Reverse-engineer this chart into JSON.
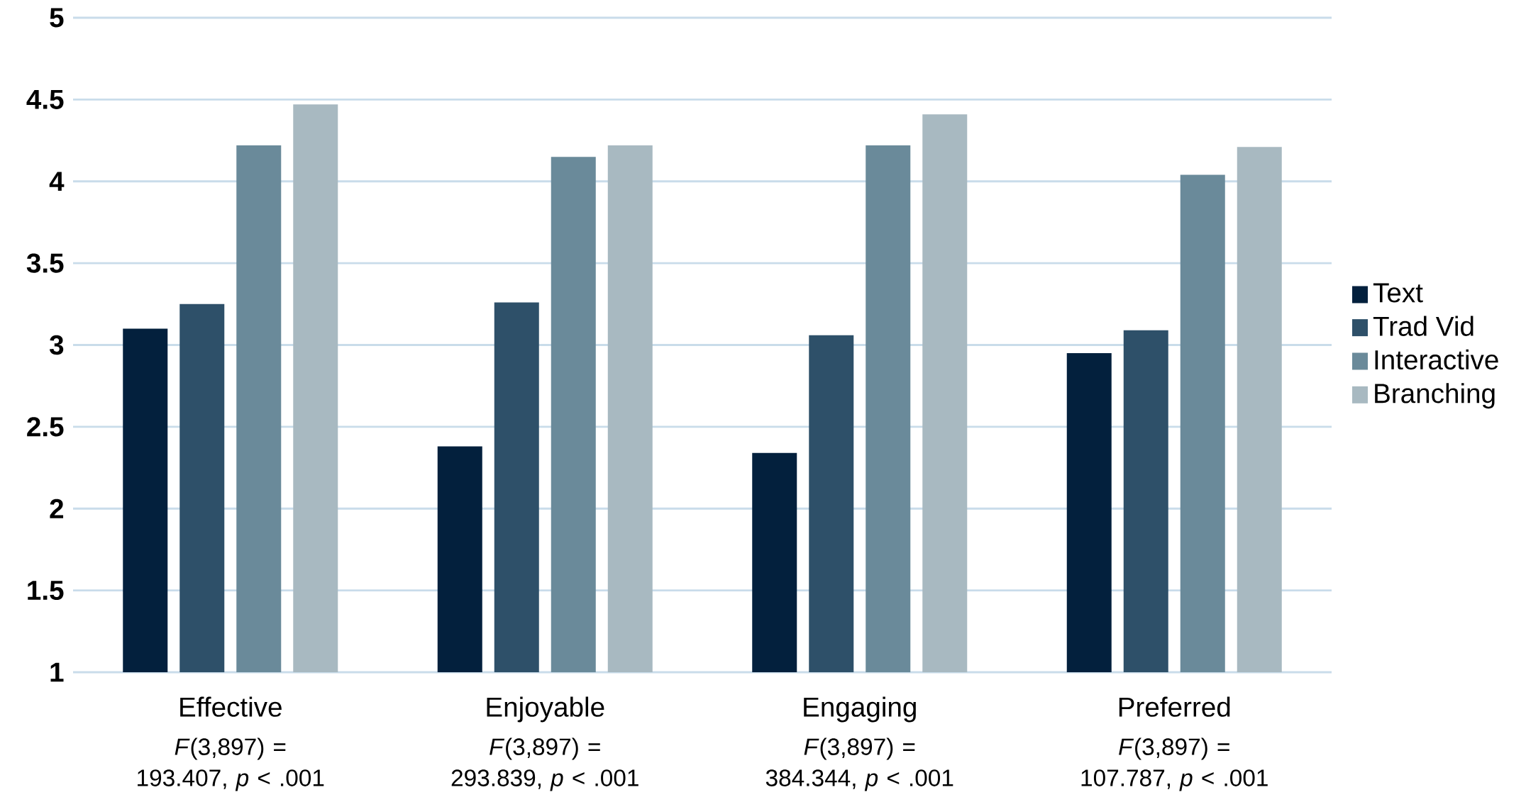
{
  "chart_data": {
    "type": "bar",
    "categories": [
      "Effective",
      "Enjoyable",
      "Engaging",
      "Preferred"
    ],
    "series": [
      {
        "name": "Text",
        "color": "#03203d",
        "values": [
          3.1,
          2.38,
          2.34,
          2.95
        ]
      },
      {
        "name": "Trad Vid",
        "color": "#2e5069",
        "values": [
          3.25,
          3.26,
          3.06,
          3.09
        ]
      },
      {
        "name": "Interactive",
        "color": "#6a8a9a",
        "values": [
          4.22,
          4.15,
          4.22,
          4.04
        ]
      },
      {
        "name": "Branching",
        "color": "#a8b9c1",
        "values": [
          4.47,
          4.22,
          4.41,
          4.21
        ]
      }
    ],
    "ylim": [
      1,
      5
    ],
    "yticks": [
      1,
      1.5,
      2,
      2.5,
      3,
      3.5,
      4,
      4.5,
      5
    ],
    "grid": "y",
    "legend": "right",
    "annotations": [
      "*F*(3,897) = 193.407, *p* < .001",
      "*F*(3,897) = 293.839, *p* < .001",
      "*F*(3,897) = 384.344, *p* < .001",
      "*F*(3,897) = 107.787, *p* < .001"
    ]
  }
}
